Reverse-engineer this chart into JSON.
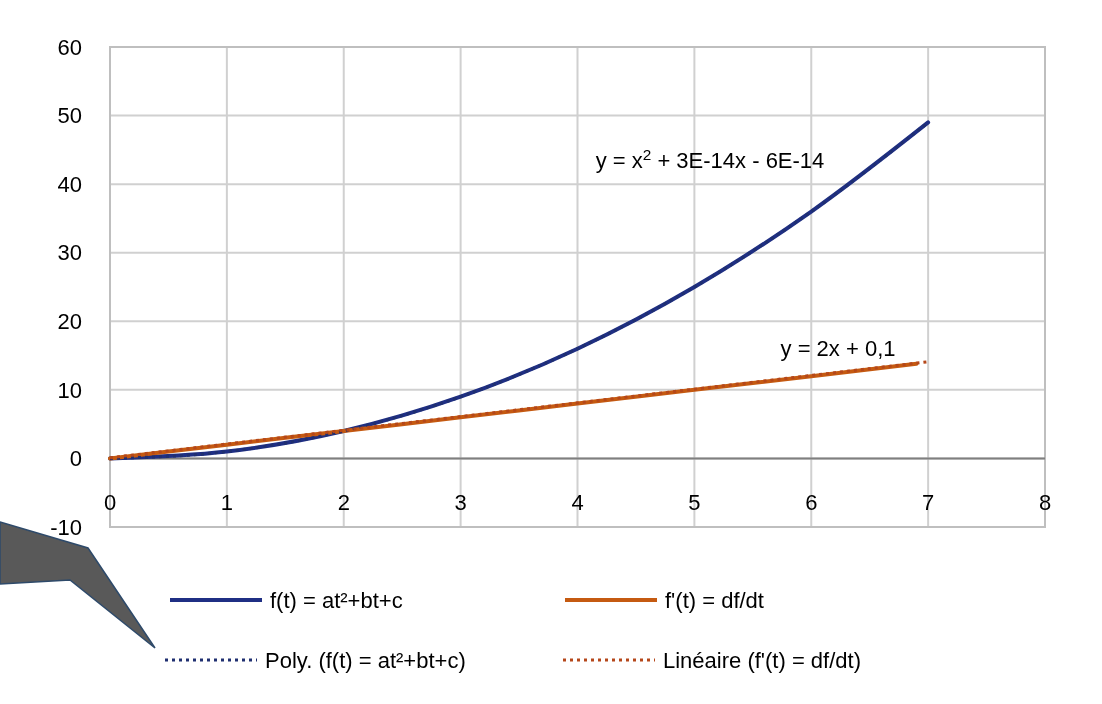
{
  "chart_data": {
    "type": "line",
    "xlim": [
      0,
      8
    ],
    "xticks": [
      0,
      1,
      2,
      3,
      4,
      5,
      6,
      7,
      8
    ],
    "ylim": [
      -10,
      60
    ],
    "yticks": [
      -10,
      0,
      10,
      20,
      30,
      40,
      50,
      60
    ],
    "grid": true,
    "legend": "bottom",
    "marker": "none",
    "series": [
      {
        "name": "f(t) = at²+bt+c",
        "color": "#1f2f84",
        "line_style": "solid",
        "x": [
          0,
          1,
          2,
          3,
          4,
          5,
          6,
          7
        ],
        "values": [
          0,
          1,
          4,
          9,
          16,
          25,
          36,
          49
        ]
      },
      {
        "name": "f'(t) = df/dt",
        "color": "#c55a11",
        "line_style": "solid",
        "x": [
          0,
          1,
          2,
          3,
          4,
          5,
          6,
          6.9
        ],
        "values": [
          0,
          2,
          4,
          6,
          8,
          10,
          12,
          13.8
        ]
      },
      {
        "name": "Poly. (f(t) = at²+bt+c)",
        "color": "#1f2f70",
        "line_style": "dotted",
        "x": [
          0,
          1,
          2,
          3,
          4,
          5,
          6,
          7
        ],
        "values": [
          0,
          1,
          4,
          9,
          16,
          25,
          36,
          49
        ]
      },
      {
        "name": "Linéaire (f'(t) = df/dt)",
        "color": "#b5471a",
        "line_style": "dotted",
        "x": [
          0,
          7
        ],
        "values": [
          0.1,
          14.1
        ]
      }
    ],
    "annotations": [
      "y = x$^{2}$ + 3E-14x - 6E-14",
      "y = 2x + 0,1"
    ]
  }
}
